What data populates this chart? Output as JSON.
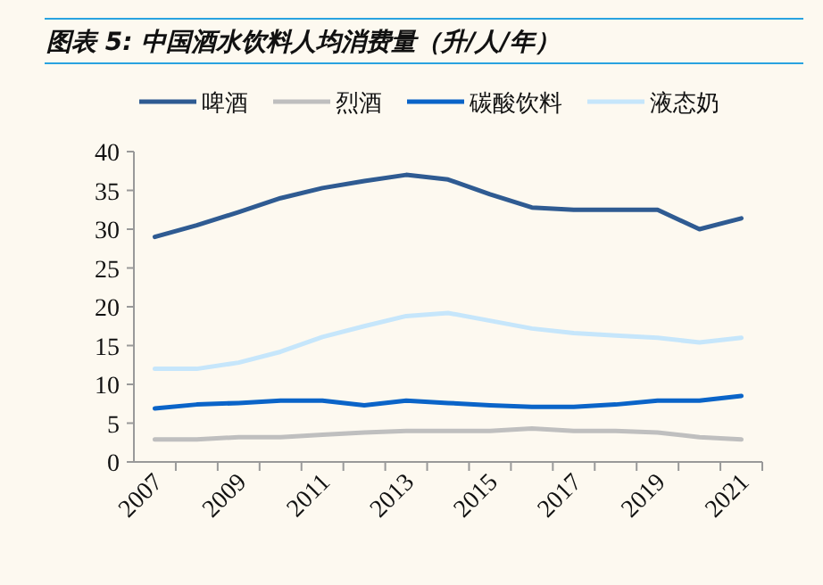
{
  "chart_data": {
    "type": "line",
    "title": "图表 5: 中国酒水饮料人均消费量（升/人/年）",
    "categories": [
      "2007",
      null,
      "2009",
      null,
      "2011",
      null,
      "2013",
      null,
      "2015",
      null,
      "2017",
      null,
      "2019",
      null,
      "2021"
    ],
    "series": [
      {
        "name": "啤酒",
        "color": "#2f5b92",
        "values": [
          29,
          30.5,
          32.2,
          34,
          35.3,
          36.2,
          37,
          36.4,
          34.5,
          32.8,
          32.5,
          32.5,
          32.5,
          30,
          31.4
        ]
      },
      {
        "name": "烈酒",
        "color": "#bfbfbf",
        "values": [
          2.9,
          2.9,
          3.2,
          3.2,
          3.5,
          3.8,
          4.0,
          4.0,
          4.0,
          4.3,
          4.0,
          4.0,
          3.8,
          3.2,
          2.9
        ]
      },
      {
        "name": "碳酸饮料",
        "color": "#0a64c8",
        "values": [
          6.9,
          7.4,
          7.6,
          7.9,
          7.9,
          7.3,
          7.9,
          7.6,
          7.3,
          7.1,
          7.1,
          7.4,
          7.9,
          7.9,
          8.5
        ]
      },
      {
        "name": "液态奶",
        "color": "#c6e6fb",
        "values": [
          12.0,
          12.0,
          12.8,
          14.2,
          16.1,
          17.5,
          18.8,
          19.2,
          18.2,
          17.2,
          16.6,
          16.3,
          16.0,
          15.4,
          16.0
        ]
      }
    ],
    "ylim": [
      0,
      40
    ],
    "yticks": [
      0,
      5,
      10,
      15,
      20,
      25,
      30,
      35,
      40
    ],
    "legend": "top",
    "grid": false
  }
}
